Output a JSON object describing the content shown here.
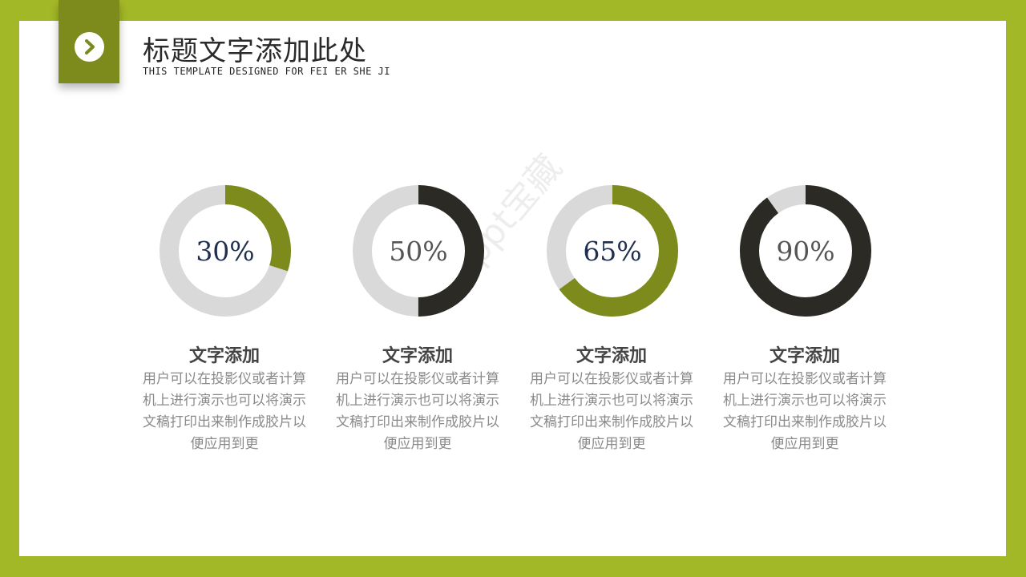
{
  "header": {
    "title": "标题文字添加此处",
    "subtitle": "THIS TEMPLATE DESIGNED FOR FEI ER SHE JI",
    "icon": "chevron-right-icon"
  },
  "colors": {
    "frame": "#a3b827",
    "accent_olive": "#7d8a1c",
    "dark": "#2b2a25",
    "track": "#d9d9d9",
    "pct_blue": "#1f2f4f",
    "pct_gray": "#555555"
  },
  "watermark": "ppt宝藏",
  "chart_data": [
    {
      "type": "pie",
      "style": "donut",
      "value": 30,
      "label": "30%",
      "ring_color": "#7d8a1c",
      "label_color": "#1f2f4f",
      "title": "文字添加",
      "description": "用户可以在投影仪或者计算机上进行演示也可以将演示文稿打印出来制作成胶片以便应用到更"
    },
    {
      "type": "pie",
      "style": "donut",
      "value": 50,
      "label": "50%",
      "ring_color": "#2b2a25",
      "label_color": "#555555",
      "title": "文字添加",
      "description": "用户可以在投影仪或者计算机上进行演示也可以将演示文稿打印出来制作成胶片以便应用到更"
    },
    {
      "type": "pie",
      "style": "donut",
      "value": 65,
      "label": "65%",
      "ring_color": "#7d8a1c",
      "label_color": "#1f2f4f",
      "title": "文字添加",
      "description": "用户可以在投影仪或者计算机上进行演示也可以将演示文稿打印出来制作成胶片以便应用到更"
    },
    {
      "type": "pie",
      "style": "donut",
      "value": 90,
      "label": "90%",
      "ring_color": "#2b2a25",
      "label_color": "#555555",
      "title": "文字添加",
      "description": "用户可以在投影仪或者计算机上进行演示也可以将演示文稿打印出来制作成胶片以便应用到更"
    }
  ]
}
